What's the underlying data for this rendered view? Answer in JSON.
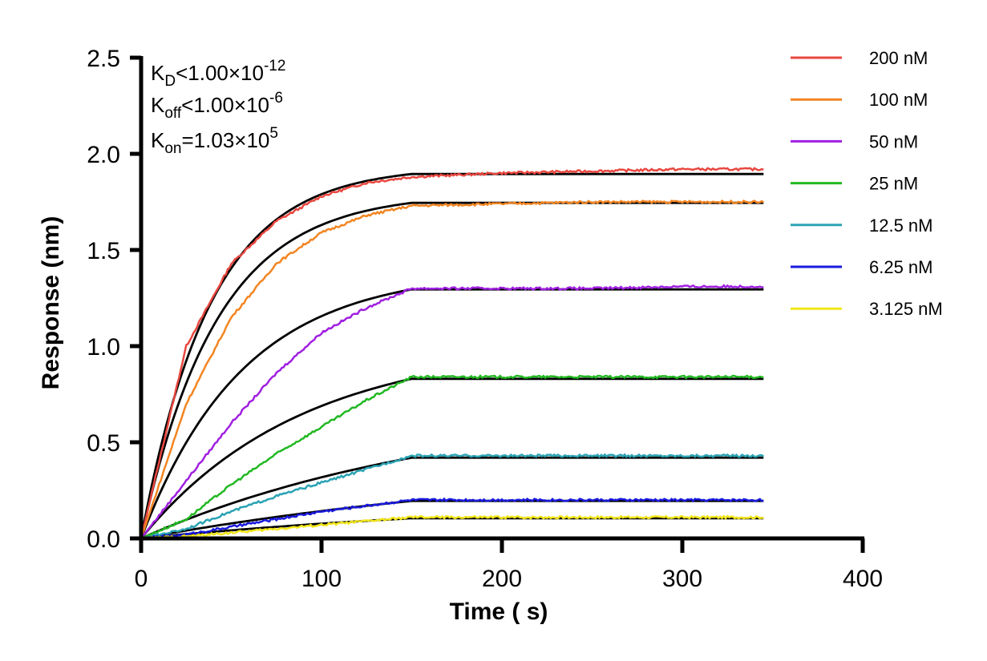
{
  "chart_data": {
    "type": "line",
    "xlabel": "Time ( s)",
    "ylabel": "Response (nm)",
    "xlim": [
      0,
      400
    ],
    "ylim": [
      0,
      2.5
    ],
    "xticks": [
      0,
      100,
      200,
      300,
      400
    ],
    "yticks": [
      0.0,
      0.5,
      1.0,
      1.5,
      2.0,
      2.5
    ],
    "xtick_labels": [
      "0",
      "100",
      "200",
      "300",
      "400"
    ],
    "ytick_labels": [
      "0.0",
      "0.5",
      "1.0",
      "1.5",
      "2.0",
      "2.5"
    ],
    "grid": false,
    "legend_position": "right",
    "association_end_s": 150,
    "end_s": 345,
    "annotations": {
      "kd": {
        "main": "K",
        "sub": "D",
        "rel": "<",
        "value": "1.00×10",
        "exp": "-12"
      },
      "koff": {
        "main": "K",
        "sub": "off",
        "rel": "<",
        "value": "1.00×10",
        "exp": "-6"
      },
      "kon": {
        "main": "K",
        "sub": "on",
        "rel": "=",
        "value": "1.03×10",
        "exp": "5"
      }
    },
    "series": [
      {
        "name": "200 nM",
        "color": "#E8473F",
        "plateau": 1.9,
        "fit_plateau": 1.895,
        "x": [
          0,
          25,
          50,
          75,
          100,
          125,
          150,
          200,
          250,
          300,
          345
        ],
        "y": [
          0.0,
          1.0,
          1.43,
          1.65,
          1.78,
          1.85,
          1.88,
          1.9,
          1.91,
          1.92,
          1.92
        ]
      },
      {
        "name": "100 nM",
        "color": "#F28522",
        "plateau": 1.74,
        "fit_plateau": 1.745,
        "x": [
          0,
          25,
          50,
          75,
          100,
          125,
          150,
          200,
          250,
          300,
          345
        ],
        "y": [
          0.0,
          0.7,
          1.15,
          1.43,
          1.59,
          1.68,
          1.73,
          1.74,
          1.75,
          1.75,
          1.75
        ]
      },
      {
        "name": "50 nM",
        "color": "#A020E0",
        "plateau": 1.3,
        "fit_plateau": 1.295,
        "x": [
          0,
          25,
          50,
          75,
          100,
          125,
          150,
          200,
          250,
          300,
          345
        ],
        "y": [
          0.0,
          0.3,
          0.6,
          0.86,
          1.07,
          1.2,
          1.3,
          1.3,
          1.3,
          1.31,
          1.31
        ]
      },
      {
        "name": "25 nM",
        "color": "#22B822",
        "plateau": 0.84,
        "fit_plateau": 0.83,
        "x": [
          0,
          25,
          50,
          75,
          100,
          125,
          150,
          200,
          250,
          300,
          345
        ],
        "y": [
          0.0,
          0.1,
          0.28,
          0.44,
          0.58,
          0.72,
          0.84,
          0.84,
          0.84,
          0.84,
          0.84
        ]
      },
      {
        "name": "12.5 nM",
        "color": "#2AA3B4",
        "plateau": 0.43,
        "fit_plateau": 0.42,
        "x": [
          0,
          25,
          50,
          75,
          100,
          125,
          150,
          200,
          250,
          300,
          345
        ],
        "y": [
          0.0,
          0.05,
          0.14,
          0.22,
          0.29,
          0.36,
          0.43,
          0.43,
          0.43,
          0.43,
          0.43
        ]
      },
      {
        "name": "6.25 nM",
        "color": "#1A1ADD",
        "plateau": 0.2,
        "fit_plateau": 0.195,
        "x": [
          0,
          25,
          50,
          75,
          100,
          125,
          150,
          200,
          250,
          300,
          345
        ],
        "y": [
          0.0,
          0.02,
          0.06,
          0.1,
          0.14,
          0.17,
          0.2,
          0.2,
          0.2,
          0.2,
          0.2
        ]
      },
      {
        "name": "3.125 nM",
        "color": "#F2E61A",
        "plateau": 0.11,
        "fit_plateau": 0.105,
        "x": [
          0,
          25,
          50,
          75,
          100,
          125,
          150,
          200,
          250,
          300,
          345
        ],
        "y": [
          0.0,
          0.01,
          0.03,
          0.05,
          0.07,
          0.09,
          0.11,
          0.11,
          0.11,
          0.11,
          0.11
        ]
      }
    ]
  }
}
